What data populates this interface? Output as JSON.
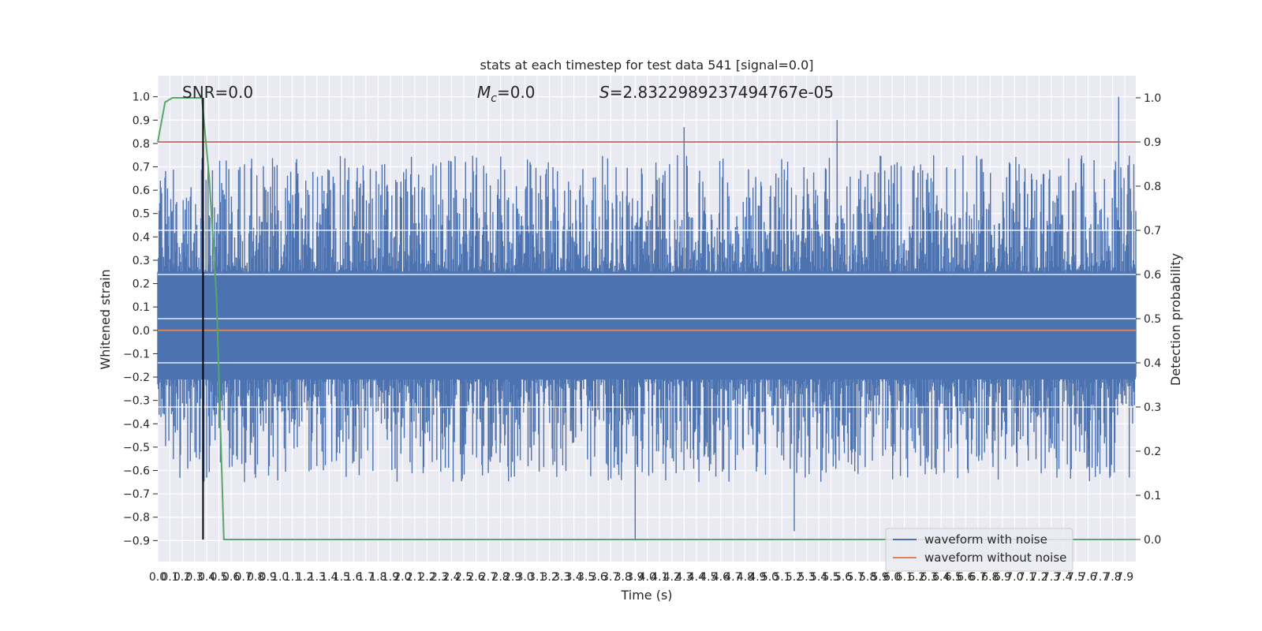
{
  "chart_data": {
    "type": "line",
    "title": "stats at each timestep for test data 541 [signal=0.0]",
    "xlabel": "Time (s)",
    "ylabel_left": "Whitened strain",
    "ylabel_right": "Detection probability",
    "xlim": [
      0.0,
      7.99
    ],
    "ylim_left": [
      -0.99,
      1.09
    ],
    "ylim_right": [
      -0.05,
      1.05
    ],
    "grid": true,
    "x_ticks": [
      "0.0",
      "0.1",
      "0.2",
      "0.3",
      "0.4",
      "0.5",
      "0.6",
      "0.7",
      "0.8",
      "0.9",
      "1.0",
      "1.1",
      "1.2",
      "1.3",
      "1.4",
      "1.5",
      "1.6",
      "1.7",
      "1.8",
      "1.9",
      "2.0",
      "2.1",
      "2.2",
      "2.3",
      "2.4",
      "2.5",
      "2.6",
      "2.7",
      "2.8",
      "2.9",
      "3.0",
      "3.1",
      "3.2",
      "3.3",
      "3.4",
      "3.5",
      "3.6",
      "3.7",
      "3.8",
      "3.9",
      "4.0",
      "4.1",
      "4.2",
      "4.3",
      "4.4",
      "4.5",
      "4.6",
      "4.7",
      "4.8",
      "4.9",
      "5.0",
      "5.1",
      "5.2",
      "5.3",
      "5.4",
      "5.5",
      "5.6",
      "5.7",
      "5.8",
      "5.9",
      "6.0",
      "6.1",
      "6.2",
      "6.3",
      "6.4",
      "6.5",
      "6.6",
      "6.7",
      "6.8",
      "6.9",
      "7.0",
      "7.1",
      "7.2",
      "7.3",
      "7.4",
      "7.5",
      "7.6",
      "7.7",
      "7.8",
      "7.9"
    ],
    "y_left_ticks": [
      "1.0",
      "0.9",
      "0.8",
      "0.7",
      "0.6",
      "0.5",
      "0.4",
      "0.3",
      "0.2",
      "0.1",
      "0.0",
      "−0.1",
      "−0.2",
      "−0.3",
      "−0.4",
      "−0.5",
      "−0.6",
      "−0.7",
      "−0.8",
      "−0.9"
    ],
    "y_right_ticks": [
      "1.0",
      "0.9",
      "0.8",
      "0.7",
      "0.6",
      "0.5",
      "0.4",
      "0.3",
      "0.2",
      "0.1",
      "0.0"
    ],
    "annotations": {
      "snr": "SNR=0.0",
      "mc_sym": "M",
      "mc_sub": "c",
      "mc_val": "=0.0",
      "s_sym": "S",
      "s_val": "=2.8322989237494767e-05"
    },
    "series": [
      {
        "name": "waveform with noise",
        "color": "#4c72b0",
        "axis": "left",
        "note_envelope": "dense noise, approx. -0.9 to 1.0",
        "peaks": [
          [
            3.9,
            -0.9
          ],
          [
            7.85,
            1.0
          ],
          [
            5.55,
            0.9
          ],
          [
            4.3,
            0.87
          ],
          [
            5.2,
            -0.86
          ]
        ]
      },
      {
        "name": "waveform without noise",
        "color": "#dd8452",
        "axis": "left",
        "x": [
          0.0,
          7.99
        ],
        "y": [
          0.0,
          0.0
        ]
      },
      {
        "color": "#55a868",
        "axis": "right",
        "x": [
          0.0,
          0.06,
          0.12,
          0.18,
          0.24,
          0.3,
          0.36,
          0.42,
          0.48,
          0.54,
          0.6,
          1.0,
          7.99
        ],
        "y": [
          0.9,
          0.99,
          1.0,
          1.0,
          1.0,
          1.0,
          1.0,
          0.82,
          0.55,
          0.0,
          0.0,
          0.0,
          0.0
        ]
      }
    ],
    "threshold": {
      "axis": "right",
      "value": 0.9,
      "color": "#c44e52"
    },
    "vline": {
      "x": 0.37,
      "color": "#000000"
    },
    "legend": {
      "position": "lower-right",
      "entries": [
        "waveform with noise",
        "waveform without noise"
      ]
    }
  }
}
